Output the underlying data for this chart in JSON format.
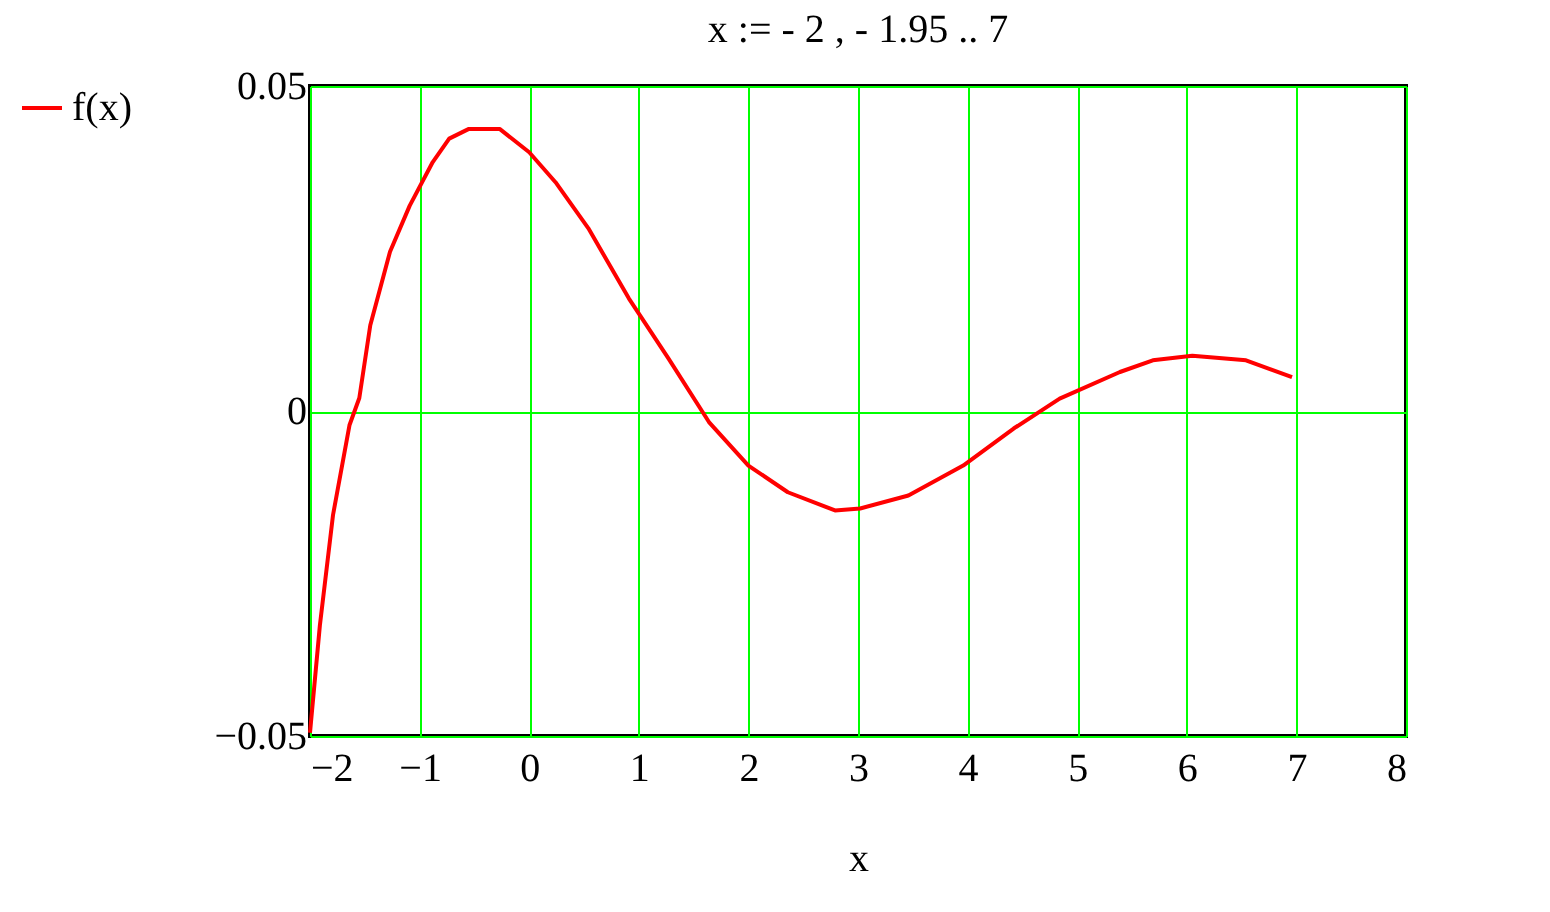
{
  "chart_data": {
    "type": "line",
    "title": "x := - 2 , - 1.95 .. 7",
    "xlabel": "x",
    "x": [
      -2,
      -1.91,
      -1.79,
      -1.64,
      -1.55,
      -1.45,
      -1.27,
      -1.09,
      -0.88,
      -0.73,
      -0.55,
      -0.27,
      0,
      0.24,
      0.54,
      0.91,
      1.27,
      1.64,
      2,
      2.36,
      2.79,
      3.02,
      3.46,
      3.96,
      4.42,
      4.84,
      5.39,
      5.69,
      6.05,
      6.54,
      6.96
    ],
    "series": [
      {
        "name": "f(x)",
        "color": "#ff0000",
        "values": [
          -0.0495,
          -0.033,
          -0.016,
          -0.0022,
          0.002,
          0.0132,
          0.0245,
          0.0316,
          0.0383,
          0.0419,
          0.0434,
          0.0434,
          0.0398,
          0.0352,
          0.0281,
          0.0173,
          0.0081,
          -0.0017,
          -0.0084,
          -0.0125,
          -0.0153,
          -0.015,
          -0.013,
          -0.0084,
          -0.0027,
          0.0019,
          0.006,
          0.0078,
          0.0085,
          0.0078,
          0.0052
        ]
      }
    ],
    "xlim": [
      -2,
      8
    ],
    "ylim": [
      -0.05,
      0.05
    ],
    "xticks": [
      -2,
      -1,
      0,
      1,
      2,
      3,
      4,
      5,
      6,
      7,
      8
    ],
    "yticks": [
      -0.05,
      0,
      0.05
    ],
    "grid": true,
    "legend": "left"
  }
}
